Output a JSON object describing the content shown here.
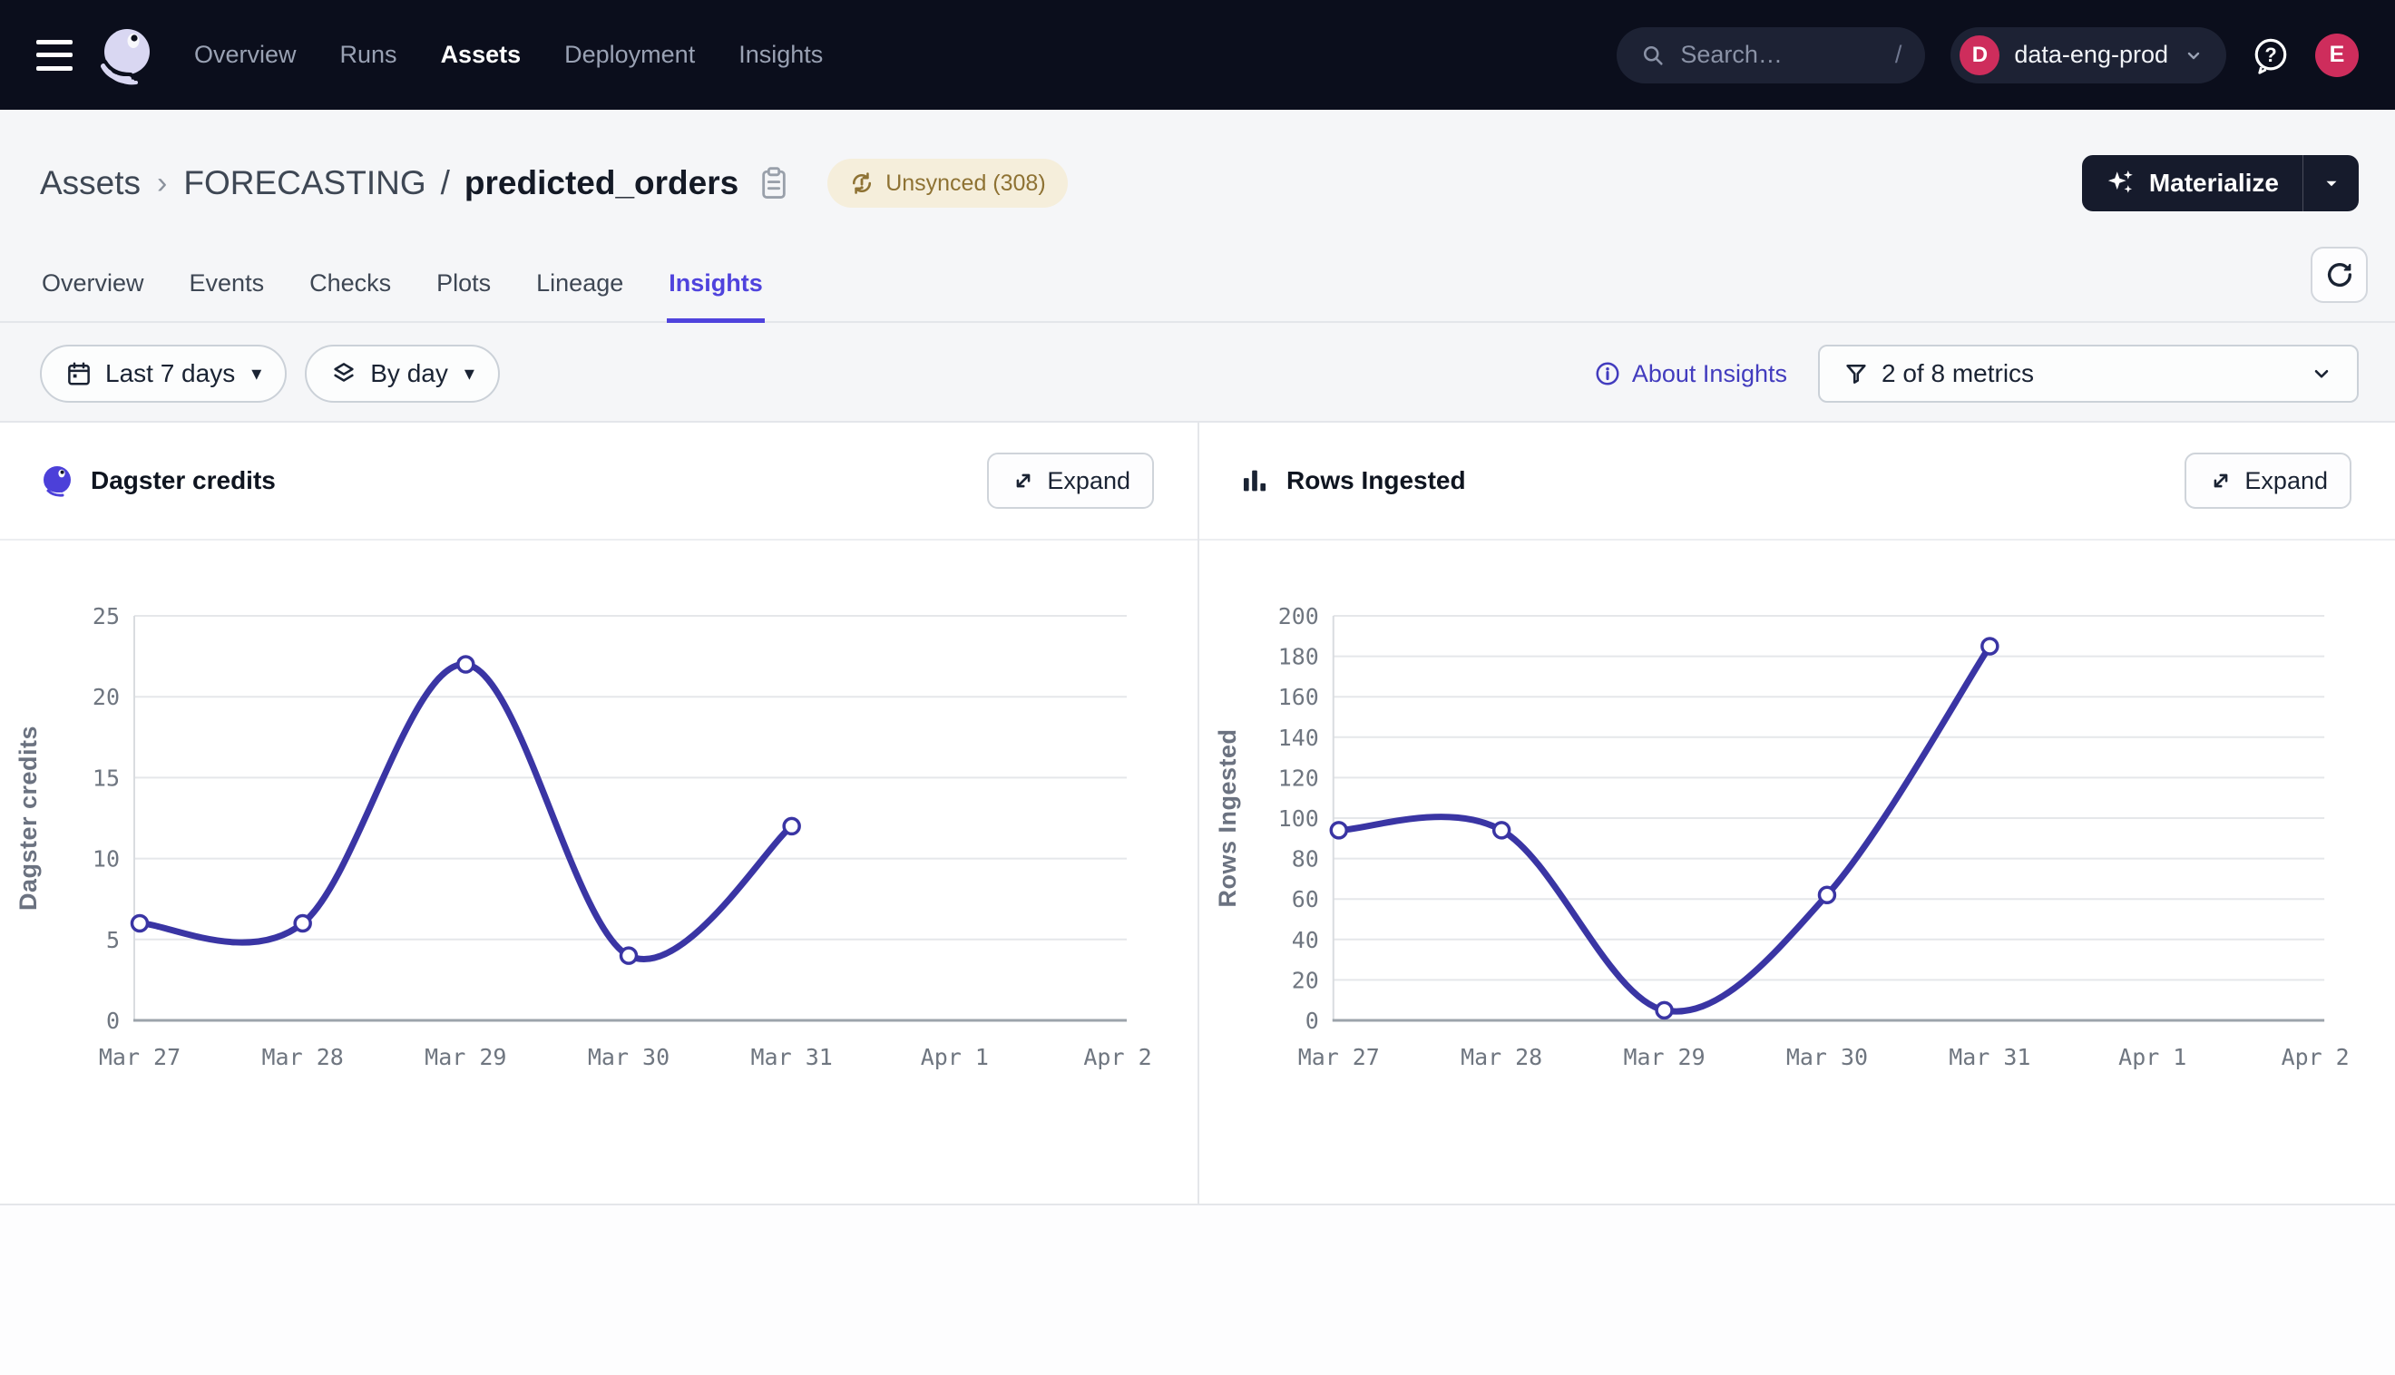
{
  "topnav": {
    "nav_items": [
      {
        "label": "Overview",
        "active": false
      },
      {
        "label": "Runs",
        "active": false
      },
      {
        "label": "Assets",
        "active": true
      },
      {
        "label": "Deployment",
        "active": false
      },
      {
        "label": "Insights",
        "active": false
      }
    ],
    "search": {
      "placeholder": "Search…",
      "shortcut_key": "/"
    },
    "deployment_switcher": {
      "initial": "D",
      "name": "data-eng-prod"
    },
    "user_avatar_initial": "E"
  },
  "breadcrumb": {
    "root": "Assets",
    "chevron": "›",
    "group": "FORECASTING",
    "separator": "/",
    "asset": "predicted_orders"
  },
  "status_badge": {
    "label": "Unsynced (308)",
    "bg": "#F5EEDB",
    "fg": "#8E7233"
  },
  "materialize_button": {
    "label": "Materialize"
  },
  "tabs": {
    "items": [
      "Overview",
      "Events",
      "Checks",
      "Plots",
      "Lineage",
      "Insights"
    ],
    "active": "Insights"
  },
  "filters": {
    "date_range_label": "Last 7 days",
    "granularity_label": "By day",
    "about_link_label": "About Insights",
    "metrics_select_value": "2 of 8 metrics"
  },
  "accent_colors": {
    "brand_indigo": "#4F43DD",
    "chart_line": "#3A35A4",
    "avatar_red": "#CE2D5C",
    "nav_bg": "#0B0E1C"
  },
  "chart_data": [
    {
      "type": "line",
      "title": "Dagster credits",
      "header_icon": "dagster-logo-icon",
      "expand_label": "Expand",
      "ylabel": "Dagster credits",
      "x_ticks": [
        "Mar 27",
        "Mar 28",
        "Mar 29",
        "Mar 30",
        "Mar 31",
        "Apr 1",
        "Apr 2"
      ],
      "x_values": [
        "Mar 27",
        "Mar 28",
        "Mar 29",
        "Mar 30",
        "Mar 31"
      ],
      "values": [
        6,
        6,
        22,
        4,
        12
      ],
      "yticks": [
        0,
        5,
        10,
        15,
        20,
        25
      ],
      "ylim": [
        0,
        25
      ],
      "grid": true,
      "legend": "none",
      "line_color": "#3A35A4",
      "marker": "open-circle"
    },
    {
      "type": "line",
      "title": "Rows Ingested",
      "header_icon": "bar-chart-icon",
      "expand_label": "Expand",
      "ylabel": "Rows Ingested",
      "x_ticks": [
        "Mar 27",
        "Mar 28",
        "Mar 29",
        "Mar 30",
        "Mar 31",
        "Apr 1",
        "Apr 2"
      ],
      "x_values": [
        "Mar 27",
        "Mar 28",
        "Mar 29",
        "Mar 30",
        "Mar 31"
      ],
      "values": [
        94,
        94,
        5,
        62,
        185
      ],
      "yticks": [
        0,
        20,
        40,
        60,
        80,
        100,
        120,
        140,
        160,
        180,
        200
      ],
      "ylim": [
        0,
        200
      ],
      "grid": true,
      "legend": "none",
      "line_color": "#3A35A4",
      "marker": "open-circle"
    }
  ]
}
